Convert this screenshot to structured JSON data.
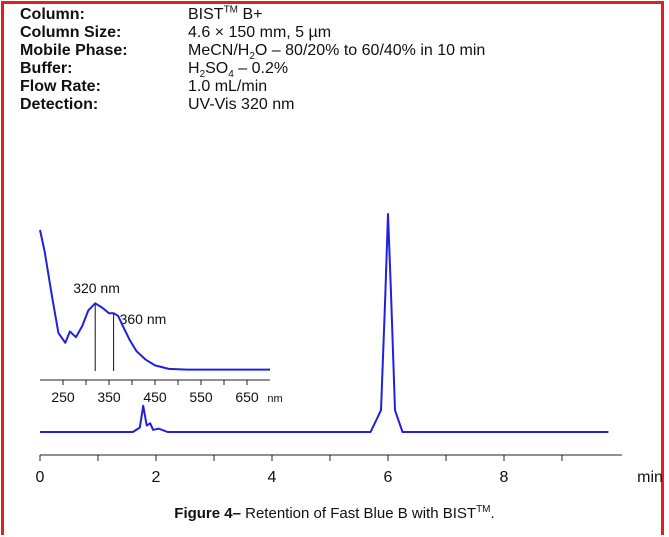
{
  "specs": [
    {
      "label": "Column:",
      "value": "BIST",
      "sup": "TM",
      "after": " B+"
    },
    {
      "label": "Column Size:",
      "value": "4.6 × 150 mm, 5 µm"
    },
    {
      "label": "Mobile Phase:",
      "value": "MeCN/H",
      "sub": "2",
      "after": "O – 80/20% to 60/40% in 10 min"
    },
    {
      "label": "Buffer:",
      "value": "H",
      "sub": "2",
      "mid": "SO",
      "sub2": "4",
      "after": " – 0.2%"
    },
    {
      "label": "Flow Rate:",
      "value": "1.0 mL/min"
    },
    {
      "label": "Detection:",
      "value": "UV-Vis 320 nm"
    }
  ],
  "caption": {
    "bold": "Figure 4–",
    "text": " Retention of Fast Blue B with BIST",
    "sup": "TM",
    "end": "."
  },
  "colors": {
    "frame": "#e02020",
    "trace": "#2020e0",
    "axis": "#222222"
  },
  "chart_data": [
    {
      "type": "line",
      "xlabel": "min",
      "xlim": [
        0,
        10
      ],
      "xticks": [
        0,
        2,
        4,
        6,
        8
      ],
      "series": [
        {
          "x": [
            0,
            1.6,
            1.72,
            1.78,
            1.84,
            1.9,
            1.95,
            2.05,
            2.2,
            5.7,
            5.88,
            5.95,
            6.0,
            6.05,
            6.12,
            6.25,
            9.8
          ],
          "y": [
            0.0,
            0.0,
            0.02,
            0.12,
            0.03,
            0.04,
            0.01,
            0.015,
            0.0,
            0.0,
            0.1,
            0.6,
            1.0,
            0.65,
            0.1,
            0.0,
            0.0
          ]
        }
      ]
    },
    {
      "type": "line",
      "xlabel": "nm",
      "xlim": [
        200,
        700
      ],
      "xticks": [
        250,
        350,
        450,
        550,
        650
      ],
      "annotations": [
        {
          "x": 320,
          "label": "320 nm"
        },
        {
          "x": 360,
          "label": "360 nm"
        }
      ],
      "series": [
        {
          "x": [
            200,
            210,
            225,
            240,
            255,
            265,
            278,
            292,
            305,
            320,
            335,
            350,
            360,
            370,
            380,
            395,
            410,
            430,
            450,
            480,
            520,
            580,
            650,
            700
          ],
          "y": [
            1.0,
            0.85,
            0.55,
            0.27,
            0.2,
            0.28,
            0.24,
            0.32,
            0.43,
            0.48,
            0.45,
            0.41,
            0.41,
            0.39,
            0.32,
            0.22,
            0.14,
            0.08,
            0.04,
            0.015,
            0.01,
            0.01,
            0.01,
            0.01
          ]
        }
      ]
    }
  ]
}
